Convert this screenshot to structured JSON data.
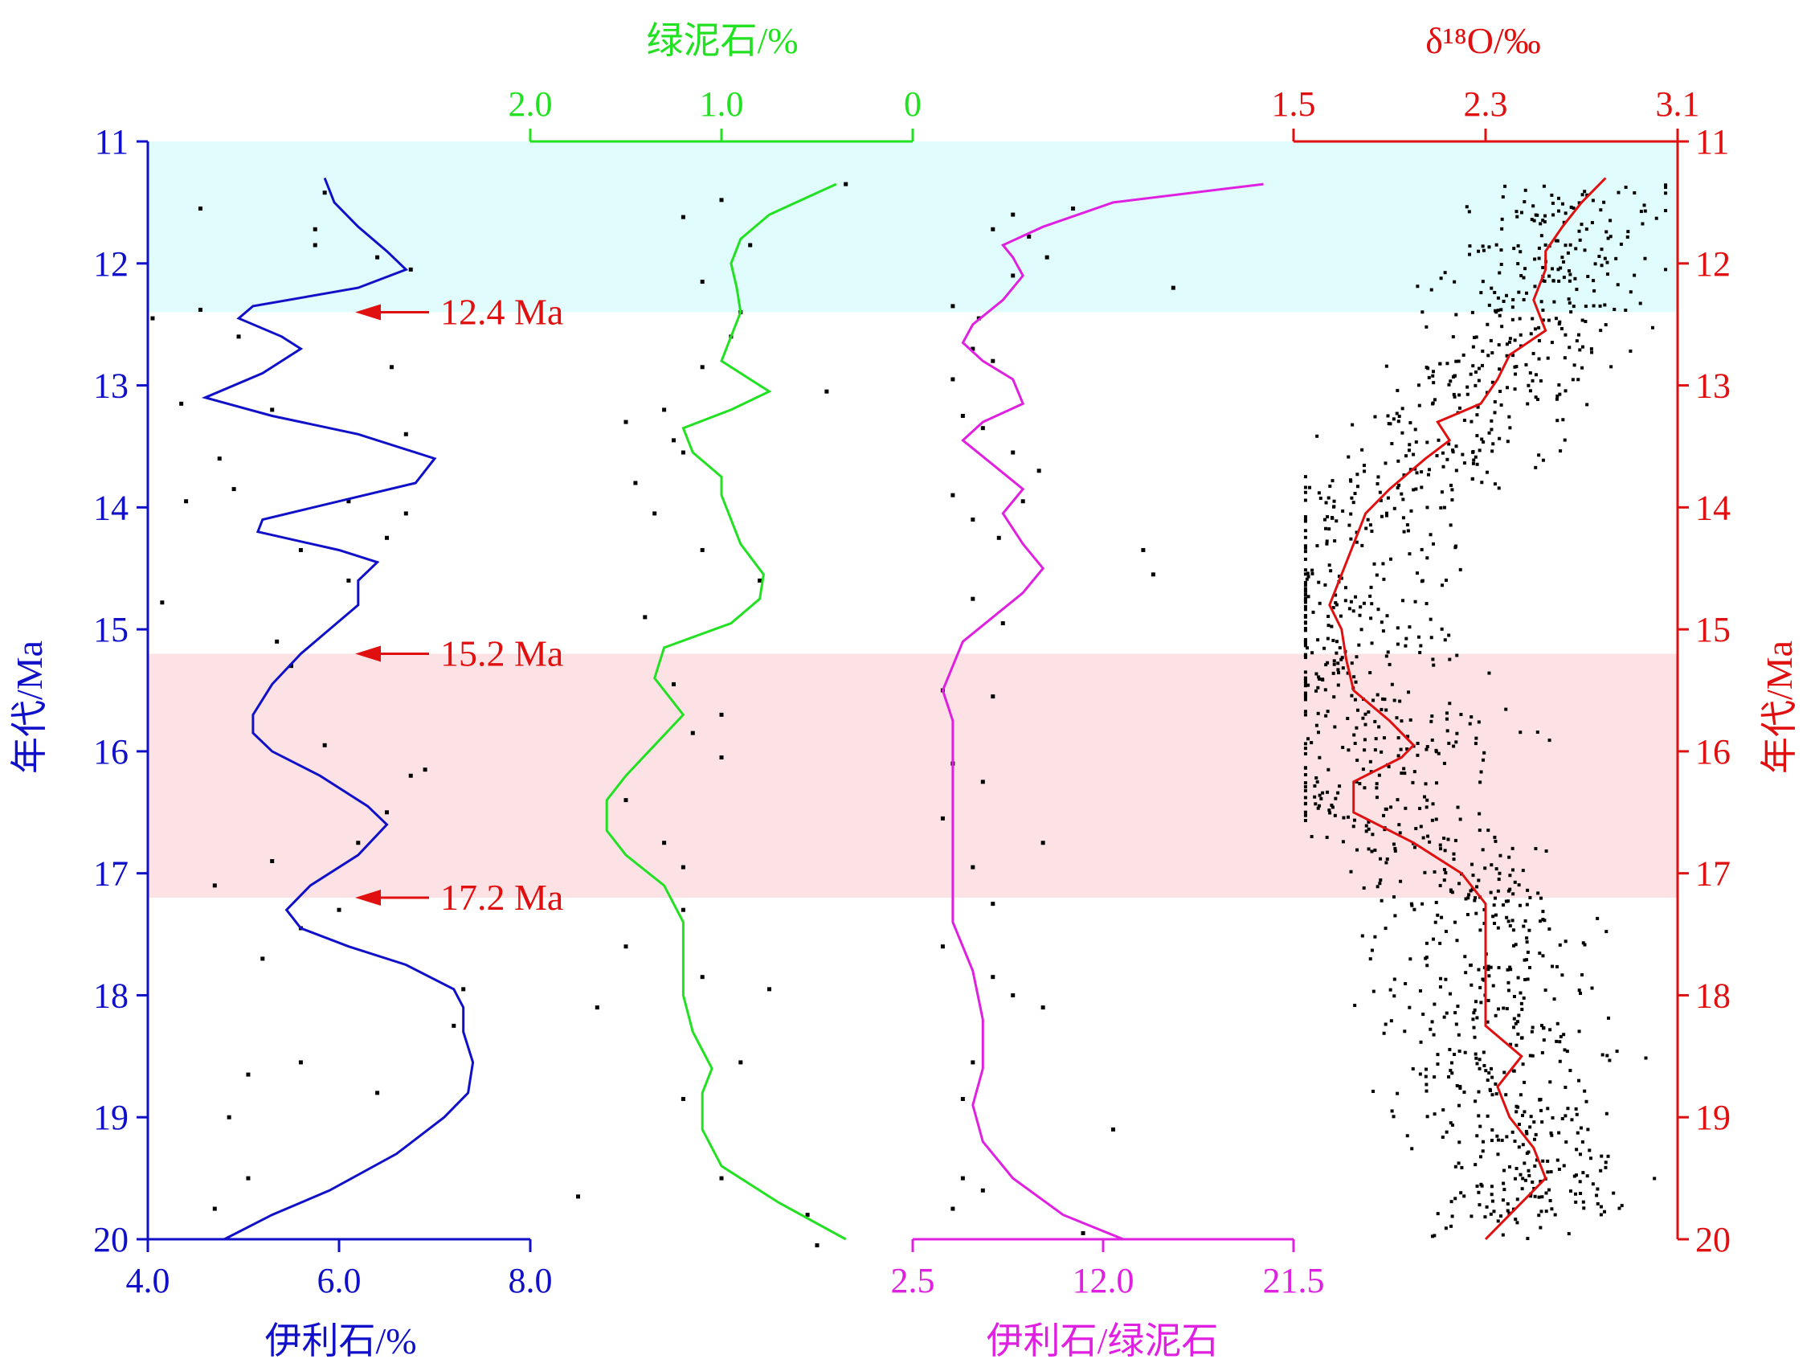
{
  "chart_data": {
    "type": "line",
    "shared_y_axis": {
      "label_left": "年代/Ma",
      "label_right": "年代/Ma",
      "ylim": [
        11,
        20
      ],
      "ticks": [
        11,
        12,
        13,
        14,
        15,
        16,
        17,
        18,
        19,
        20
      ],
      "inverted": true,
      "left_color": "#1010c8",
      "right_color": "#e01010"
    },
    "panels": [
      {
        "id": "illite",
        "xlabel": "伊利石/%",
        "axis_position": "bottom",
        "xlim": [
          4.0,
          8.0
        ],
        "ticks": [
          "4.0",
          "6.0",
          "8.0"
        ],
        "color": "#1010c8",
        "series_age": [
          11.3,
          11.5,
          11.7,
          11.9,
          12.05,
          12.2,
          12.35,
          12.45,
          12.6,
          12.7,
          12.9,
          13.1,
          13.25,
          13.4,
          13.6,
          13.8,
          13.95,
          14.1,
          14.2,
          14.35,
          14.45,
          14.6,
          14.8,
          15.0,
          15.2,
          15.45,
          15.7,
          15.85,
          16.0,
          16.2,
          16.45,
          16.6,
          16.85,
          17.1,
          17.3,
          17.45,
          17.6,
          17.75,
          17.95,
          18.1,
          18.3,
          18.55,
          18.8,
          19.0,
          19.3,
          19.6,
          19.8,
          20.0
        ],
        "series_value": [
          5.85,
          5.95,
          6.2,
          6.5,
          6.7,
          6.2,
          5.1,
          4.95,
          5.4,
          5.6,
          5.2,
          4.6,
          5.3,
          6.2,
          7.0,
          6.8,
          6.0,
          5.2,
          5.15,
          6.0,
          6.4,
          6.2,
          6.2,
          5.9,
          5.6,
          5.3,
          5.1,
          5.1,
          5.3,
          5.8,
          6.3,
          6.5,
          6.2,
          5.7,
          5.45,
          5.6,
          6.1,
          6.7,
          7.2,
          7.3,
          7.3,
          7.4,
          7.35,
          7.1,
          6.6,
          5.9,
          5.3,
          4.8
        ],
        "scatter": [
          [
            5.85,
            11.42
          ],
          [
            4.55,
            11.55
          ],
          [
            5.75,
            11.72
          ],
          [
            5.75,
            11.85
          ],
          [
            6.4,
            11.95
          ],
          [
            6.75,
            12.05
          ],
          [
            4.05,
            12.45
          ],
          [
            4.55,
            12.38
          ],
          [
            4.95,
            12.6
          ],
          [
            6.55,
            12.85
          ],
          [
            4.35,
            13.15
          ],
          [
            5.3,
            13.2
          ],
          [
            6.7,
            13.4
          ],
          [
            4.75,
            13.6
          ],
          [
            4.9,
            13.85
          ],
          [
            4.4,
            13.95
          ],
          [
            6.1,
            13.95
          ],
          [
            6.7,
            14.05
          ],
          [
            5.6,
            14.35
          ],
          [
            6.5,
            14.25
          ],
          [
            6.1,
            14.6
          ],
          [
            4.15,
            14.78
          ],
          [
            5.35,
            15.1
          ],
          [
            5.5,
            15.3
          ],
          [
            5.85,
            15.95
          ],
          [
            6.9,
            16.15
          ],
          [
            6.75,
            16.2
          ],
          [
            6.5,
            16.5
          ],
          [
            6.2,
            16.75
          ],
          [
            5.3,
            16.9
          ],
          [
            4.7,
            17.1
          ],
          [
            5.6,
            17.45
          ],
          [
            6.0,
            17.3
          ],
          [
            5.2,
            17.7
          ],
          [
            7.3,
            17.95
          ],
          [
            7.2,
            18.25
          ],
          [
            5.6,
            18.55
          ],
          [
            5.05,
            18.65
          ],
          [
            6.4,
            18.8
          ],
          [
            4.85,
            19.0
          ],
          [
            5.05,
            19.5
          ],
          [
            4.7,
            19.75
          ]
        ],
        "annotations": [
          "12.4 Ma",
          "15.2 Ma",
          "17.2 Ma"
        ]
      },
      {
        "id": "chlorite",
        "xlabel": "绿泥石/%",
        "axis_position": "top",
        "xlim": [
          2.0,
          0
        ],
        "ticks": [
          "2.0",
          "1.0",
          "0"
        ],
        "color": "#22e022",
        "series_age": [
          11.35,
          11.6,
          11.8,
          12.0,
          12.2,
          12.4,
          12.6,
          12.8,
          12.95,
          13.05,
          13.2,
          13.35,
          13.55,
          13.75,
          13.9,
          14.1,
          14.3,
          14.55,
          14.75,
          14.95,
          15.15,
          15.4,
          15.7,
          15.95,
          16.2,
          16.4,
          16.65,
          16.85,
          17.1,
          17.4,
          17.7,
          18.0,
          18.3,
          18.6,
          18.8,
          19.1,
          19.4,
          19.7,
          20.0
        ],
        "series_value": [
          0.4,
          0.75,
          0.9,
          0.95,
          0.92,
          0.9,
          0.95,
          1.0,
          0.85,
          0.75,
          0.95,
          1.2,
          1.15,
          1.0,
          1.0,
          0.95,
          0.9,
          0.78,
          0.8,
          0.95,
          1.3,
          1.35,
          1.2,
          1.35,
          1.5,
          1.6,
          1.6,
          1.5,
          1.3,
          1.2,
          1.2,
          1.2,
          1.15,
          1.05,
          1.1,
          1.1,
          1.0,
          0.7,
          0.35
        ],
        "scatter": [
          [
            0.35,
            11.35
          ],
          [
            1.0,
            11.48
          ],
          [
            1.2,
            11.62
          ],
          [
            0.85,
            11.85
          ],
          [
            1.1,
            12.15
          ],
          [
            0.9,
            12.4
          ],
          [
            0.95,
            12.6
          ],
          [
            1.1,
            12.85
          ],
          [
            0.45,
            13.05
          ],
          [
            1.5,
            13.3
          ],
          [
            1.3,
            13.2
          ],
          [
            1.25,
            13.45
          ],
          [
            1.2,
            13.55
          ],
          [
            1.45,
            13.8
          ],
          [
            1.35,
            14.05
          ],
          [
            1.1,
            14.35
          ],
          [
            0.8,
            14.6
          ],
          [
            1.4,
            14.9
          ],
          [
            1.25,
            15.45
          ],
          [
            1.0,
            15.7
          ],
          [
            1.15,
            15.85
          ],
          [
            1.0,
            16.05
          ],
          [
            1.5,
            16.4
          ],
          [
            1.3,
            16.75
          ],
          [
            1.2,
            16.95
          ],
          [
            1.2,
            17.3
          ],
          [
            1.5,
            17.6
          ],
          [
            1.1,
            17.85
          ],
          [
            0.75,
            17.95
          ],
          [
            1.65,
            18.1
          ],
          [
            0.9,
            18.55
          ],
          [
            1.2,
            18.85
          ],
          [
            1.0,
            19.5
          ],
          [
            1.75,
            19.65
          ],
          [
            0.55,
            19.8
          ],
          [
            0.5,
            20.05
          ]
        ]
      },
      {
        "id": "illite_chlorite_ratio",
        "xlabel": "伊利石/绿泥石",
        "axis_position": "bottom",
        "xlim": [
          2.5,
          21.5
        ],
        "ticks": [
          "2.5",
          "12.0",
          "21.5"
        ],
        "color": "#e020e0",
        "series_age": [
          11.35,
          11.5,
          11.7,
          11.85,
          11.95,
          12.1,
          12.3,
          12.5,
          12.65,
          12.8,
          12.95,
          13.15,
          13.3,
          13.45,
          13.65,
          13.85,
          14.05,
          14.3,
          14.5,
          14.7,
          14.9,
          15.1,
          15.3,
          15.5,
          15.75,
          16.1,
          16.5,
          17.0,
          17.4,
          17.8,
          18.2,
          18.6,
          18.9,
          19.2,
          19.5,
          19.8,
          20.0
        ],
        "series_value": [
          20.0,
          12.5,
          9.0,
          7.0,
          7.5,
          8.0,
          7.0,
          5.5,
          5.0,
          6.0,
          7.5,
          8.0,
          6.0,
          5.0,
          6.5,
          8.0,
          7.0,
          8.0,
          9.0,
          8.0,
          6.5,
          5.0,
          4.5,
          4.0,
          4.5,
          4.5,
          4.5,
          4.5,
          4.5,
          5.5,
          6.0,
          6.0,
          5.5,
          6.0,
          7.5,
          10.0,
          13.0
        ],
        "scatter": [
          [
            10.5,
            11.55
          ],
          [
            7.5,
            11.6
          ],
          [
            6.5,
            11.72
          ],
          [
            8.3,
            11.78
          ],
          [
            9.2,
            11.95
          ],
          [
            7.5,
            12.1
          ],
          [
            15.5,
            12.2
          ],
          [
            4.5,
            12.35
          ],
          [
            5.8,
            12.45
          ],
          [
            5.5,
            12.7
          ],
          [
            6.5,
            12.8
          ],
          [
            4.5,
            12.95
          ],
          [
            5.0,
            13.25
          ],
          [
            6.0,
            13.35
          ],
          [
            7.5,
            13.55
          ],
          [
            8.8,
            13.7
          ],
          [
            8.0,
            13.95
          ],
          [
            4.5,
            13.9
          ],
          [
            5.5,
            14.1
          ],
          [
            6.8,
            14.25
          ],
          [
            14.0,
            14.35
          ],
          [
            14.5,
            14.55
          ],
          [
            5.5,
            14.75
          ],
          [
            7.0,
            14.95
          ],
          [
            4.0,
            15.5
          ],
          [
            6.5,
            15.55
          ],
          [
            4.5,
            16.1
          ],
          [
            6.0,
            16.25
          ],
          [
            4.0,
            16.55
          ],
          [
            9.0,
            16.75
          ],
          [
            5.5,
            16.95
          ],
          [
            6.5,
            17.25
          ],
          [
            4.0,
            17.6
          ],
          [
            6.5,
            17.85
          ],
          [
            7.5,
            18.0
          ],
          [
            9.0,
            18.1
          ],
          [
            5.5,
            18.55
          ],
          [
            5.0,
            18.85
          ],
          [
            12.5,
            19.1
          ],
          [
            5.0,
            19.5
          ],
          [
            6.0,
            19.6
          ],
          [
            4.5,
            19.75
          ],
          [
            11.0,
            19.95
          ]
        ]
      },
      {
        "id": "d18O",
        "xlabel": "δ¹⁸O/‰",
        "axis_position": "top",
        "xlim": [
          1.5,
          3.1
        ],
        "ticks": [
          "1.5",
          "2.3",
          "3.1"
        ],
        "color": "#e01010",
        "series_age": [
          11.3,
          11.5,
          11.7,
          11.9,
          12.05,
          12.3,
          12.55,
          12.75,
          12.95,
          13.15,
          13.3,
          13.45,
          13.6,
          13.85,
          14.05,
          14.3,
          14.55,
          14.8,
          15.0,
          15.25,
          15.5,
          15.75,
          15.95,
          16.05,
          16.25,
          16.5,
          16.75,
          17.0,
          17.25,
          17.5,
          17.75,
          18.0,
          18.25,
          18.5,
          18.75,
          19.0,
          19.25,
          19.5,
          19.8,
          20.0
        ],
        "series_value": [
          2.8,
          2.7,
          2.62,
          2.55,
          2.55,
          2.5,
          2.55,
          2.4,
          2.35,
          2.28,
          2.1,
          2.15,
          2.05,
          1.9,
          1.8,
          1.75,
          1.7,
          1.65,
          1.7,
          1.72,
          1.75,
          1.9,
          2.0,
          1.95,
          1.75,
          1.75,
          2.0,
          2.2,
          2.3,
          2.3,
          2.3,
          2.3,
          2.3,
          2.45,
          2.35,
          2.4,
          2.5,
          2.55,
          2.4,
          2.3
        ]
      }
    ],
    "shaded_bands": [
      {
        "from": 11,
        "to": 12.4,
        "color": "#e0fcfc"
      },
      {
        "from": 15.2,
        "to": 17.2,
        "color": "#fce2e4"
      }
    ],
    "arrow_annotations": [
      {
        "label": "12.4 Ma",
        "age": 12.4
      },
      {
        "label": "15.2 Ma",
        "age": 15.2
      },
      {
        "label": "17.2 Ma",
        "age": 17.2
      }
    ],
    "d18O_cloud": {
      "points_dense": true
    }
  }
}
